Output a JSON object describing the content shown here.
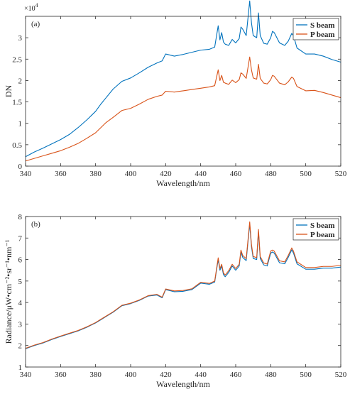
{
  "figure": {
    "background": "#ffffff"
  },
  "chart_data": [
    {
      "type": "line",
      "panel_label": "(a)",
      "xlabel": "Wavelength/nm",
      "ylabel": "DN",
      "y_exponent_label": "×10",
      "y_exponent_power": "4",
      "xlim": [
        340,
        520
      ],
      "ylim": [
        0,
        3.5
      ],
      "xticks": [
        340,
        360,
        380,
        400,
        420,
        440,
        460,
        480,
        500,
        520
      ],
      "yticks": [
        0,
        0.5,
        1,
        1.5,
        2,
        2.5,
        3
      ],
      "ytick_labels": [
        "0",
        "0.5",
        "1",
        "1.5",
        "2",
        "2.5",
        "3"
      ],
      "legend_position": "top-right",
      "grid": false,
      "series": [
        {
          "name": "S beam",
          "color": "#0072BD",
          "x": [
            340,
            345,
            350,
            355,
            360,
            365,
            370,
            375,
            380,
            383,
            386,
            390,
            395,
            400,
            405,
            410,
            415,
            418,
            420,
            425,
            430,
            435,
            440,
            445,
            448,
            450,
            451,
            452,
            453,
            454,
            456,
            458,
            460,
            462,
            463,
            464,
            466,
            468,
            469,
            470,
            472,
            473,
            474,
            476,
            478,
            480,
            481,
            482,
            485,
            488,
            490,
            492,
            493,
            495,
            500,
            505,
            510,
            515,
            520
          ],
          "y": [
            0.22,
            0.33,
            0.42,
            0.52,
            0.62,
            0.74,
            0.9,
            1.08,
            1.28,
            1.45,
            1.6,
            1.8,
            1.98,
            2.06,
            2.18,
            2.31,
            2.41,
            2.46,
            2.62,
            2.57,
            2.61,
            2.66,
            2.71,
            2.73,
            2.78,
            3.28,
            2.95,
            3.12,
            2.9,
            2.85,
            2.82,
            2.96,
            2.88,
            2.98,
            3.25,
            3.2,
            3.05,
            3.86,
            3.35,
            3.05,
            3.0,
            3.58,
            3.05,
            2.87,
            2.85,
            3.0,
            3.15,
            3.12,
            2.88,
            2.82,
            2.92,
            3.1,
            3.05,
            2.76,
            2.62,
            2.62,
            2.57,
            2.49,
            2.43
          ]
        },
        {
          "name": "P beam",
          "color": "#D95319",
          "x": [
            340,
            345,
            350,
            355,
            360,
            365,
            370,
            375,
            380,
            383,
            386,
            390,
            395,
            400,
            405,
            410,
            415,
            418,
            420,
            425,
            430,
            435,
            440,
            445,
            448,
            450,
            451,
            452,
            453,
            454,
            456,
            458,
            460,
            462,
            463,
            464,
            466,
            468,
            469,
            470,
            472,
            473,
            474,
            476,
            478,
            480,
            481,
            482,
            485,
            488,
            490,
            492,
            493,
            495,
            500,
            505,
            510,
            515,
            520
          ],
          "y": [
            0.12,
            0.18,
            0.24,
            0.3,
            0.36,
            0.44,
            0.53,
            0.65,
            0.78,
            0.9,
            1.02,
            1.14,
            1.3,
            1.35,
            1.45,
            1.56,
            1.63,
            1.66,
            1.75,
            1.73,
            1.76,
            1.79,
            1.82,
            1.85,
            1.88,
            2.25,
            2.0,
            2.12,
            1.96,
            1.94,
            1.91,
            2.01,
            1.95,
            2.02,
            2.18,
            2.15,
            2.05,
            2.55,
            2.25,
            2.06,
            2.03,
            2.38,
            2.05,
            1.94,
            1.92,
            2.02,
            2.12,
            2.1,
            1.94,
            1.9,
            1.97,
            2.08,
            2.05,
            1.86,
            1.76,
            1.77,
            1.72,
            1.66,
            1.6
          ]
        }
      ]
    },
    {
      "type": "line",
      "panel_label": "(b)",
      "xlabel": "Wavelength/nm",
      "ylabel": "Radiance/μW•cm⁻²•sr⁻¹•nm⁻¹",
      "xlim": [
        340,
        520
      ],
      "ylim": [
        1,
        8
      ],
      "xticks": [
        340,
        360,
        380,
        400,
        420,
        440,
        460,
        480,
        500,
        520
      ],
      "yticks": [
        1,
        2,
        3,
        4,
        5,
        6,
        7,
        8
      ],
      "ytick_labels": [
        "1",
        "2",
        "3",
        "4",
        "5",
        "6",
        "7",
        "8"
      ],
      "legend_position": "top-right",
      "grid": false,
      "series": [
        {
          "name": "S beam",
          "color": "#0072BD",
          "x": [
            340,
            345,
            350,
            355,
            360,
            365,
            370,
            375,
            380,
            383,
            386,
            390,
            395,
            400,
            405,
            410,
            415,
            418,
            420,
            425,
            430,
            435,
            440,
            445,
            448,
            450,
            451,
            452,
            453,
            454,
            456,
            458,
            460,
            462,
            463,
            464,
            466,
            468,
            469,
            470,
            472,
            473,
            474,
            476,
            478,
            480,
            481,
            482,
            485,
            488,
            490,
            492,
            493,
            495,
            500,
            505,
            510,
            515,
            520
          ],
          "y": [
            1.85,
            2.0,
            2.12,
            2.28,
            2.42,
            2.55,
            2.68,
            2.85,
            3.05,
            3.2,
            3.35,
            3.55,
            3.85,
            3.95,
            4.1,
            4.3,
            4.35,
            4.22,
            4.6,
            4.5,
            4.52,
            4.6,
            4.9,
            4.85,
            4.95,
            6.0,
            5.5,
            5.7,
            5.3,
            5.2,
            5.4,
            5.7,
            5.5,
            5.7,
            6.35,
            6.1,
            5.95,
            7.65,
            6.6,
            6.05,
            6.0,
            7.3,
            6.05,
            5.75,
            5.7,
            6.3,
            6.35,
            6.3,
            5.85,
            5.8,
            6.1,
            6.45,
            6.3,
            5.8,
            5.55,
            5.55,
            5.6,
            5.6,
            5.65
          ]
        },
        {
          "name": "P beam",
          "color": "#D95319",
          "x": [
            340,
            345,
            350,
            355,
            360,
            365,
            370,
            375,
            380,
            383,
            386,
            390,
            395,
            400,
            405,
            410,
            415,
            418,
            420,
            425,
            430,
            435,
            440,
            445,
            448,
            450,
            451,
            452,
            453,
            454,
            456,
            458,
            460,
            462,
            463,
            464,
            466,
            468,
            469,
            470,
            472,
            473,
            474,
            476,
            478,
            480,
            481,
            482,
            485,
            488,
            490,
            492,
            493,
            495,
            500,
            505,
            510,
            515,
            520
          ],
          "y": [
            1.87,
            2.02,
            2.14,
            2.3,
            2.44,
            2.57,
            2.7,
            2.87,
            3.07,
            3.22,
            3.37,
            3.57,
            3.87,
            3.97,
            4.12,
            4.32,
            4.38,
            4.25,
            4.63,
            4.54,
            4.56,
            4.64,
            4.94,
            4.89,
            5.0,
            6.08,
            5.58,
            5.78,
            5.38,
            5.28,
            5.48,
            5.78,
            5.58,
            5.78,
            6.44,
            6.19,
            6.04,
            7.75,
            6.7,
            6.14,
            6.09,
            7.4,
            6.14,
            5.84,
            5.79,
            6.4,
            6.44,
            6.39,
            5.94,
            5.89,
            6.19,
            6.54,
            6.39,
            5.89,
            5.63,
            5.63,
            5.68,
            5.68,
            5.73
          ]
        }
      ]
    }
  ]
}
